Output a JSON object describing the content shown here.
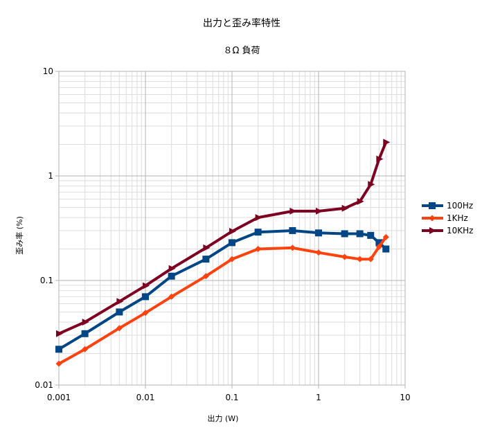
{
  "chart_data": {
    "type": "line",
    "title": "出力と歪み率特性",
    "subtitle": "８Ω 負荷",
    "xlabel": "出力 (W)",
    "ylabel": "歪み率 (%)",
    "x_scale": "log",
    "y_scale": "log",
    "xlim": [
      0.001,
      10
    ],
    "ylim": [
      0.01,
      10
    ],
    "x_ticks": [
      "0.001",
      "0.01",
      "0.1",
      "1",
      "10"
    ],
    "y_ticks": [
      "0.01",
      "0.1",
      "1",
      "10"
    ],
    "grid": true,
    "legend_position": "right",
    "series": [
      {
        "name": "100Hz",
        "color": "#004586",
        "marker": "square",
        "x": [
          0.001,
          0.002,
          0.005,
          0.01,
          0.02,
          0.05,
          0.1,
          0.2,
          0.5,
          1,
          2,
          3,
          4,
          5,
          6
        ],
        "y": [
          0.022,
          0.031,
          0.05,
          0.07,
          0.11,
          0.16,
          0.23,
          0.29,
          0.3,
          0.285,
          0.28,
          0.28,
          0.27,
          0.23,
          0.2
        ]
      },
      {
        "name": "1KHz",
        "color": "#ff420e",
        "marker": "diamond",
        "x": [
          0.001,
          0.002,
          0.005,
          0.01,
          0.02,
          0.05,
          0.1,
          0.2,
          0.5,
          1,
          2,
          3,
          4,
          5,
          6
        ],
        "y": [
          0.016,
          0.022,
          0.035,
          0.049,
          0.07,
          0.11,
          0.16,
          0.2,
          0.205,
          0.185,
          0.168,
          0.16,
          0.16,
          0.21,
          0.26
        ]
      },
      {
        "name": "10KHz",
        "color": "#7e0021",
        "marker": "triangle-right",
        "x": [
          0.001,
          0.002,
          0.005,
          0.01,
          0.02,
          0.05,
          0.1,
          0.2,
          0.5,
          1,
          2,
          3,
          4,
          5,
          6
        ],
        "y": [
          0.031,
          0.04,
          0.063,
          0.089,
          0.13,
          0.205,
          0.295,
          0.4,
          0.46,
          0.46,
          0.49,
          0.57,
          0.83,
          1.45,
          2.1
        ]
      }
    ]
  }
}
